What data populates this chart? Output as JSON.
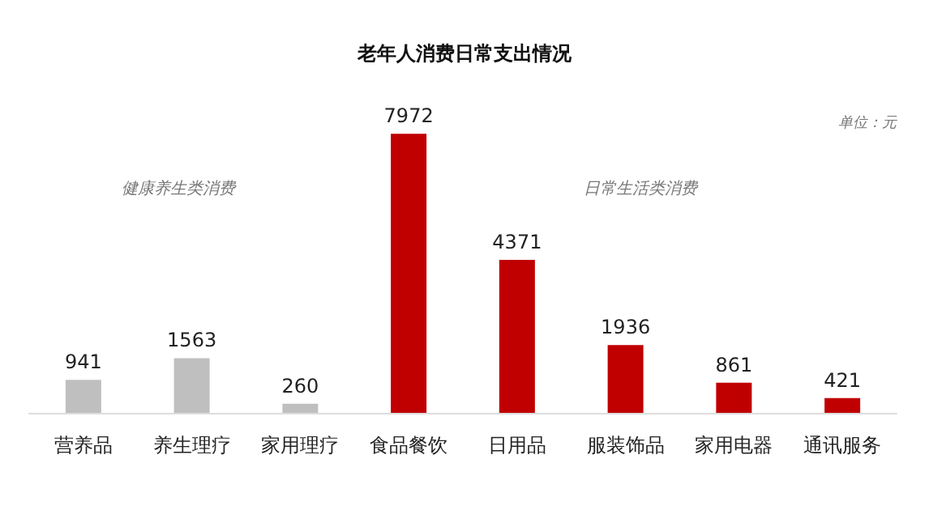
{
  "chart_data": {
    "type": "bar",
    "title": "老年人消费日常支出情况",
    "categories": [
      "营养品",
      "养生理疗",
      "家用理疗",
      "食品餐饮",
      "日用品",
      "服装饰品",
      "家用电器",
      "通讯服务"
    ],
    "values": [
      941,
      1563,
      260,
      7972,
      4371,
      1936,
      861,
      421
    ],
    "colors": [
      "#bfbfbf",
      "#bfbfbf",
      "#bfbfbf",
      "#c00000",
      "#c00000",
      "#c00000",
      "#c00000",
      "#c00000"
    ],
    "data_labels": true,
    "annotations": [
      "单位：元",
      "健康养生类消费",
      "日常生活类消费"
    ]
  }
}
